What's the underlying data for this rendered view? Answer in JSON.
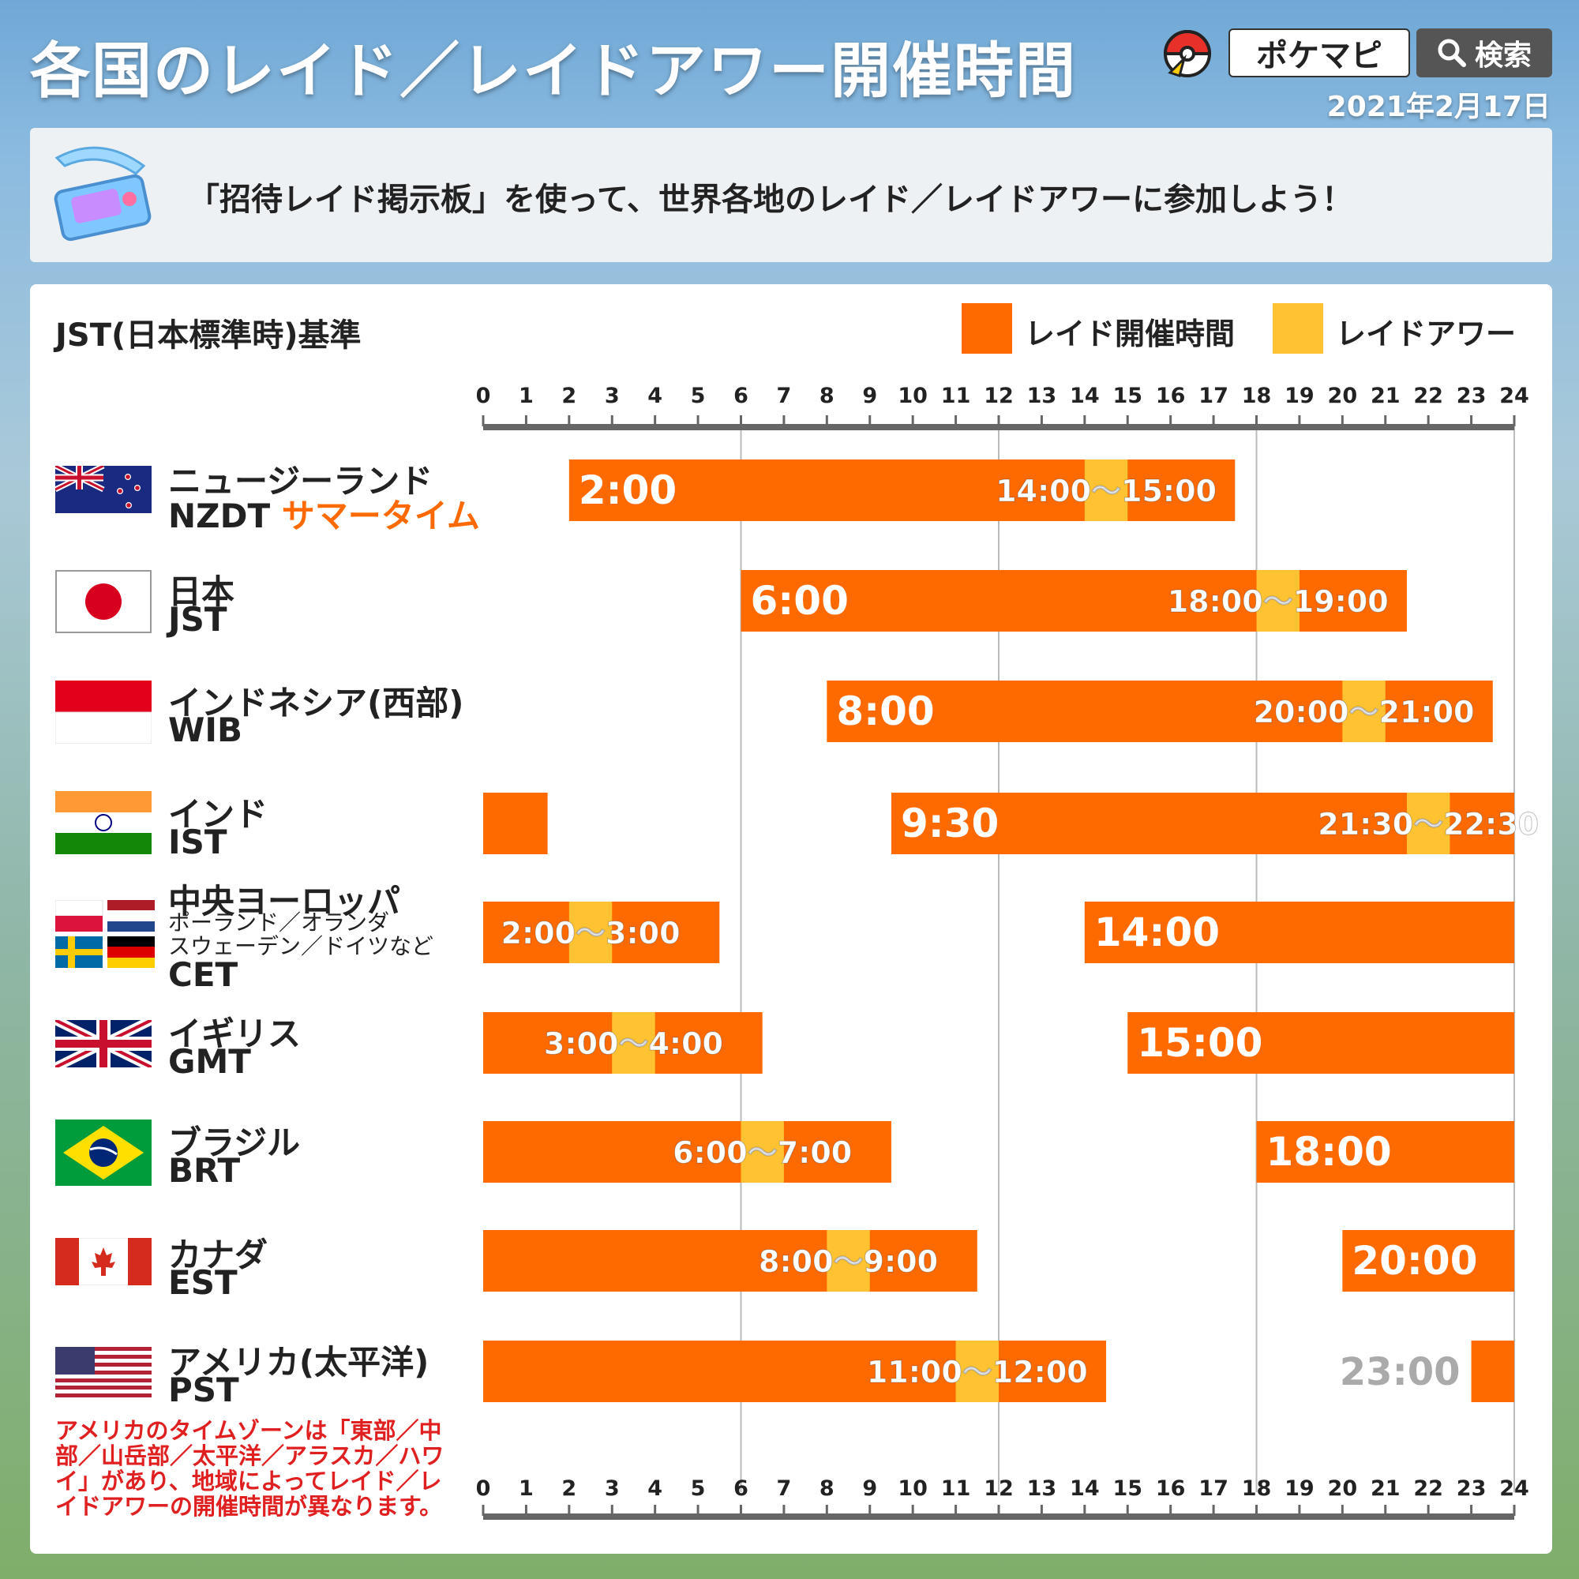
{
  "header": {
    "title": "各国のレイド／レイドアワー開催時間",
    "brand": "ポケマピ",
    "search_label": "検索",
    "date": "2021年2月17日"
  },
  "banner": {
    "text": "「招待レイド掲示板」を使って、世界各地のレイド／レイドアワーに参加しよう！"
  },
  "panel": {
    "basis": "JST(日本標準時)基準",
    "legend": [
      {
        "label": "レイド開催時間",
        "color": "#ff6a00"
      },
      {
        "label": "レイドアワー",
        "color": "#ffc233"
      }
    ],
    "footnote": "アメリカのタイムゾーンは「東部／中部／山岳部／太平洋／アラスカ／ハワイ」があり、地域によってレイド／レイドアワーの開催時間が異なります。"
  },
  "countries": [
    {
      "name": "ニュージーランド",
      "tz": "NZDT",
      "extra": "サマータイム",
      "flag": "nz-flag"
    },
    {
      "name": "日本",
      "tz": "JST",
      "flag": "jp-flag"
    },
    {
      "name": "インドネシア(西部)",
      "tz": "WIB",
      "flag": "id-flag"
    },
    {
      "name": "インド",
      "tz": "IST",
      "flag": "in-flag"
    },
    {
      "name": "中央ヨーロッパ",
      "tz": "CET",
      "sub": [
        "ポーランド／オランダ",
        "スウェーデン／ドイツなど"
      ],
      "flag": "eu-flags"
    },
    {
      "name": "イギリス",
      "tz": "GMT",
      "flag": "uk-flag"
    },
    {
      "name": "ブラジル",
      "tz": "BRT",
      "flag": "br-flag"
    },
    {
      "name": "カナダ",
      "tz": "EST",
      "flag": "ca-flag"
    },
    {
      "name": "アメリカ(太平洋)",
      "tz": "PST",
      "flag": "us-flag"
    }
  ],
  "chart_data": {
    "type": "bar",
    "title": "各国のレイド／レイドアワー開催時間",
    "xlabel": "JST(日本標準時)基準",
    "xlim": [
      0,
      24
    ],
    "ticks": [
      0,
      1,
      2,
      3,
      4,
      5,
      6,
      7,
      8,
      9,
      10,
      11,
      12,
      13,
      14,
      15,
      16,
      17,
      18,
      19,
      20,
      21,
      22,
      23,
      24
    ],
    "colors": {
      "raid": "#ff6a00",
      "raid_hour": "#ffc233"
    },
    "rows": [
      {
        "zone": "NZDT",
        "raid": [
          [
            2,
            17.5
          ]
        ],
        "raid_hour": [
          14,
          15
        ],
        "start_label": "2:00",
        "start_label_at": 2,
        "hour_label": "14:00〜15:00"
      },
      {
        "zone": "JST",
        "raid": [
          [
            6,
            21.5
          ]
        ],
        "raid_hour": [
          18,
          19
        ],
        "start_label": "6:00",
        "start_label_at": 6,
        "hour_label": "18:00〜19:00"
      },
      {
        "zone": "WIB",
        "raid": [
          [
            8,
            23.5
          ]
        ],
        "raid_hour": [
          20,
          21
        ],
        "start_label": "8:00",
        "start_label_at": 8,
        "hour_label": "20:00〜21:00"
      },
      {
        "zone": "IST",
        "raid": [
          [
            0,
            1.5
          ],
          [
            9.5,
            24
          ]
        ],
        "raid_hour": [
          21.5,
          22.5
        ],
        "start_label": "9:30",
        "start_label_at": 9.5,
        "hour_label": "21:30〜22:30"
      },
      {
        "zone": "CET",
        "raid": [
          [
            0,
            5.5
          ],
          [
            14,
            24
          ]
        ],
        "raid_hour": [
          2,
          3
        ],
        "start_label": "14:00",
        "start_label_at": 14,
        "hour_label": "2:00〜3:00"
      },
      {
        "zone": "GMT",
        "raid": [
          [
            0,
            6.5
          ],
          [
            15,
            24
          ]
        ],
        "raid_hour": [
          3,
          4
        ],
        "start_label": "15:00",
        "start_label_at": 15,
        "hour_label": "3:00〜4:00"
      },
      {
        "zone": "BRT",
        "raid": [
          [
            0,
            9.5
          ],
          [
            18,
            24
          ]
        ],
        "raid_hour": [
          6,
          7
        ],
        "start_label": "18:00",
        "start_label_at": 18,
        "hour_label": "6:00〜7:00"
      },
      {
        "zone": "EST",
        "raid": [
          [
            0,
            11.5
          ],
          [
            20,
            24
          ]
        ],
        "raid_hour": [
          8,
          9
        ],
        "start_label": "20:00",
        "start_label_at": 20,
        "hour_label": "8:00〜9:00"
      },
      {
        "zone": "PST",
        "raid": [
          [
            0,
            14.5
          ],
          [
            23,
            24
          ]
        ],
        "raid_hour": [
          11,
          12
        ],
        "start_label": "23:00",
        "start_label_at": 23,
        "start_label_outside": true,
        "hour_label": "11:00〜12:00"
      }
    ]
  }
}
